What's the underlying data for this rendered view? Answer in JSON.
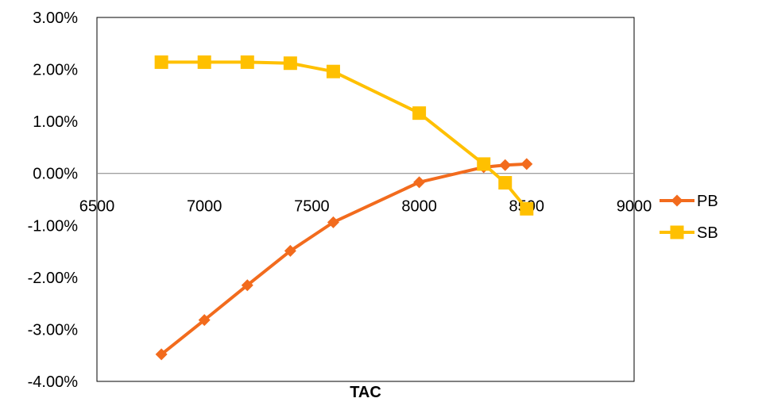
{
  "chart_data": {
    "type": "line",
    "title": "",
    "xlabel": "TAC",
    "ylabel": "",
    "xlim": [
      6500,
      9000
    ],
    "ylim": [
      -4.0,
      3.0
    ],
    "x_ticks": [
      6500,
      7000,
      7500,
      8000,
      8500,
      9000
    ],
    "x_tick_labels": [
      "6500",
      "7000",
      "7500",
      "8000",
      "8500",
      "9000"
    ],
    "y_ticks": [
      3.0,
      2.0,
      1.0,
      0.0,
      -1.0,
      -2.0,
      -3.0,
      -4.0
    ],
    "y_tick_labels": [
      "3.00%",
      "2.00%",
      "1.00%",
      "0.00%",
      "-1.00%",
      "-2.00%",
      "-3.00%",
      "-4.00%"
    ],
    "y_unit": "%",
    "grid": false,
    "legend_position": "right",
    "series": [
      {
        "name": "PB",
        "color": "#f26b1d",
        "marker": "diamond",
        "x": [
          6800,
          7000,
          7200,
          7400,
          7600,
          8000,
          8300,
          8400,
          8500
        ],
        "y": [
          -3.48,
          -2.82,
          -2.15,
          -1.49,
          -0.94,
          -0.17,
          0.12,
          0.16,
          0.18
        ]
      },
      {
        "name": "SB",
        "color": "#ffc000",
        "marker": "square",
        "x": [
          6800,
          7000,
          7200,
          7400,
          7600,
          8000,
          8300,
          8400,
          8500
        ],
        "y": [
          2.14,
          2.14,
          2.14,
          2.12,
          1.96,
          1.16,
          0.18,
          -0.18,
          -0.68
        ]
      }
    ]
  }
}
